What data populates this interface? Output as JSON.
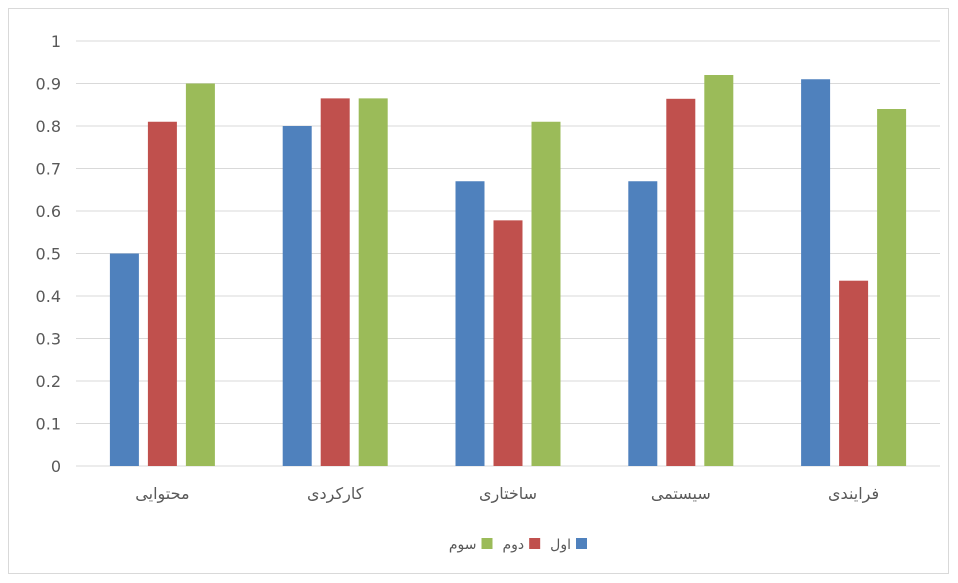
{
  "chart_data": {
    "type": "bar",
    "categories": [
      "محتوایی",
      "کارکردی",
      "ساختاری",
      "سیستمی",
      "فرایندی"
    ],
    "series": [
      {
        "name": "اول",
        "color": "#4f81bd",
        "values": [
          0.5,
          0.8,
          0.67,
          0.67,
          0.91
        ]
      },
      {
        "name": "دوم",
        "color": "#c0504d",
        "values": [
          0.81,
          0.865,
          0.578,
          0.864,
          0.436
        ]
      },
      {
        "name": "سوم",
        "color": "#9bbb59",
        "values": [
          0.9,
          0.865,
          0.81,
          0.92,
          0.84
        ]
      }
    ],
    "y_ticks": [
      "0",
      "0.1",
      "0.2",
      "0.3",
      "0.4",
      "0.5",
      "0.6",
      "0.7",
      "0.8",
      "0.9",
      "1"
    ],
    "ylim": [
      0,
      1
    ],
    "grid": true,
    "legend_position": "bottom",
    "title": "",
    "xlabel": "",
    "ylabel": ""
  }
}
